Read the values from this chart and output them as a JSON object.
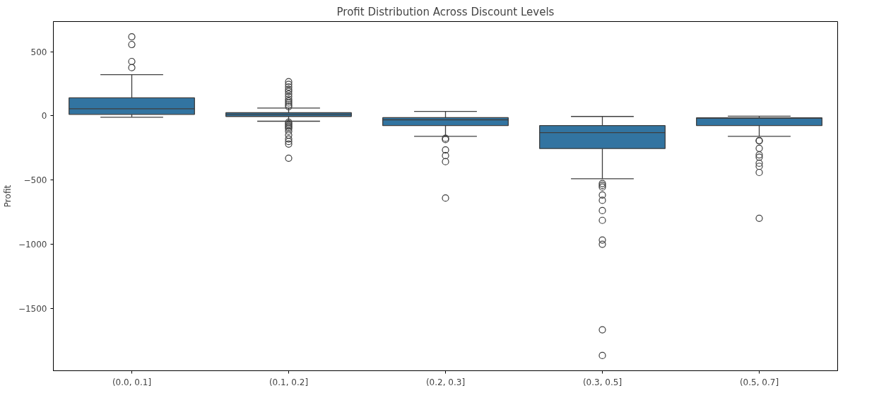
{
  "chart_data": {
    "type": "box",
    "title": "Profit Distribution Across Discount Levels",
    "ylabel": "Profit",
    "categories": [
      "(0.0, 0.1]",
      "(0.1, 0.2]",
      "(0.2, 0.3]",
      "(0.3, 0.5]",
      "(0.5, 0.7]"
    ],
    "ylim": [
      -1985,
      734
    ],
    "yticks": [
      -1500,
      -1000,
      -500,
      0,
      500
    ],
    "grid": false,
    "series": [
      {
        "color": "#3274a1",
        "boxes": [
          {
            "low": -11,
            "q1": 11,
            "median": 55,
            "q3": 140,
            "high": 320,
            "outliers": [
              615,
              555,
              423,
              375
            ]
          },
          {
            "low": -42,
            "q1": -5,
            "median": 9,
            "q3": 24,
            "high": 60,
            "outliers": [
              265,
              245,
              225,
              205,
              190,
              170,
              150,
              130,
              115,
              100,
              85,
              72,
              -50,
              -60,
              -70,
              -80,
              -90,
              -100,
              -120,
              -150,
              -180,
              -200,
              -220,
              -330
            ]
          },
          {
            "low": -160,
            "q1": -76,
            "median": -31,
            "q3": -14,
            "high": 34,
            "outliers": [
              -175,
              -185,
              -266,
              -310,
              -357,
              -640
            ]
          },
          {
            "low": -490,
            "q1": -255,
            "median": -131,
            "q3": -76,
            "high": -5,
            "outliers": [
              -527,
              -541,
              -555,
              -617,
              -658,
              -738,
              -814,
              -967,
              -1000,
              -1666,
              -1866
            ]
          },
          {
            "low": -160,
            "q1": -76,
            "median": -18,
            "q3": -16,
            "high": -3,
            "outliers": [
              -192,
              -195,
              -253,
              -304,
              -322,
              -369,
              -393,
              -441,
              -798
            ]
          }
        ]
      }
    ]
  }
}
